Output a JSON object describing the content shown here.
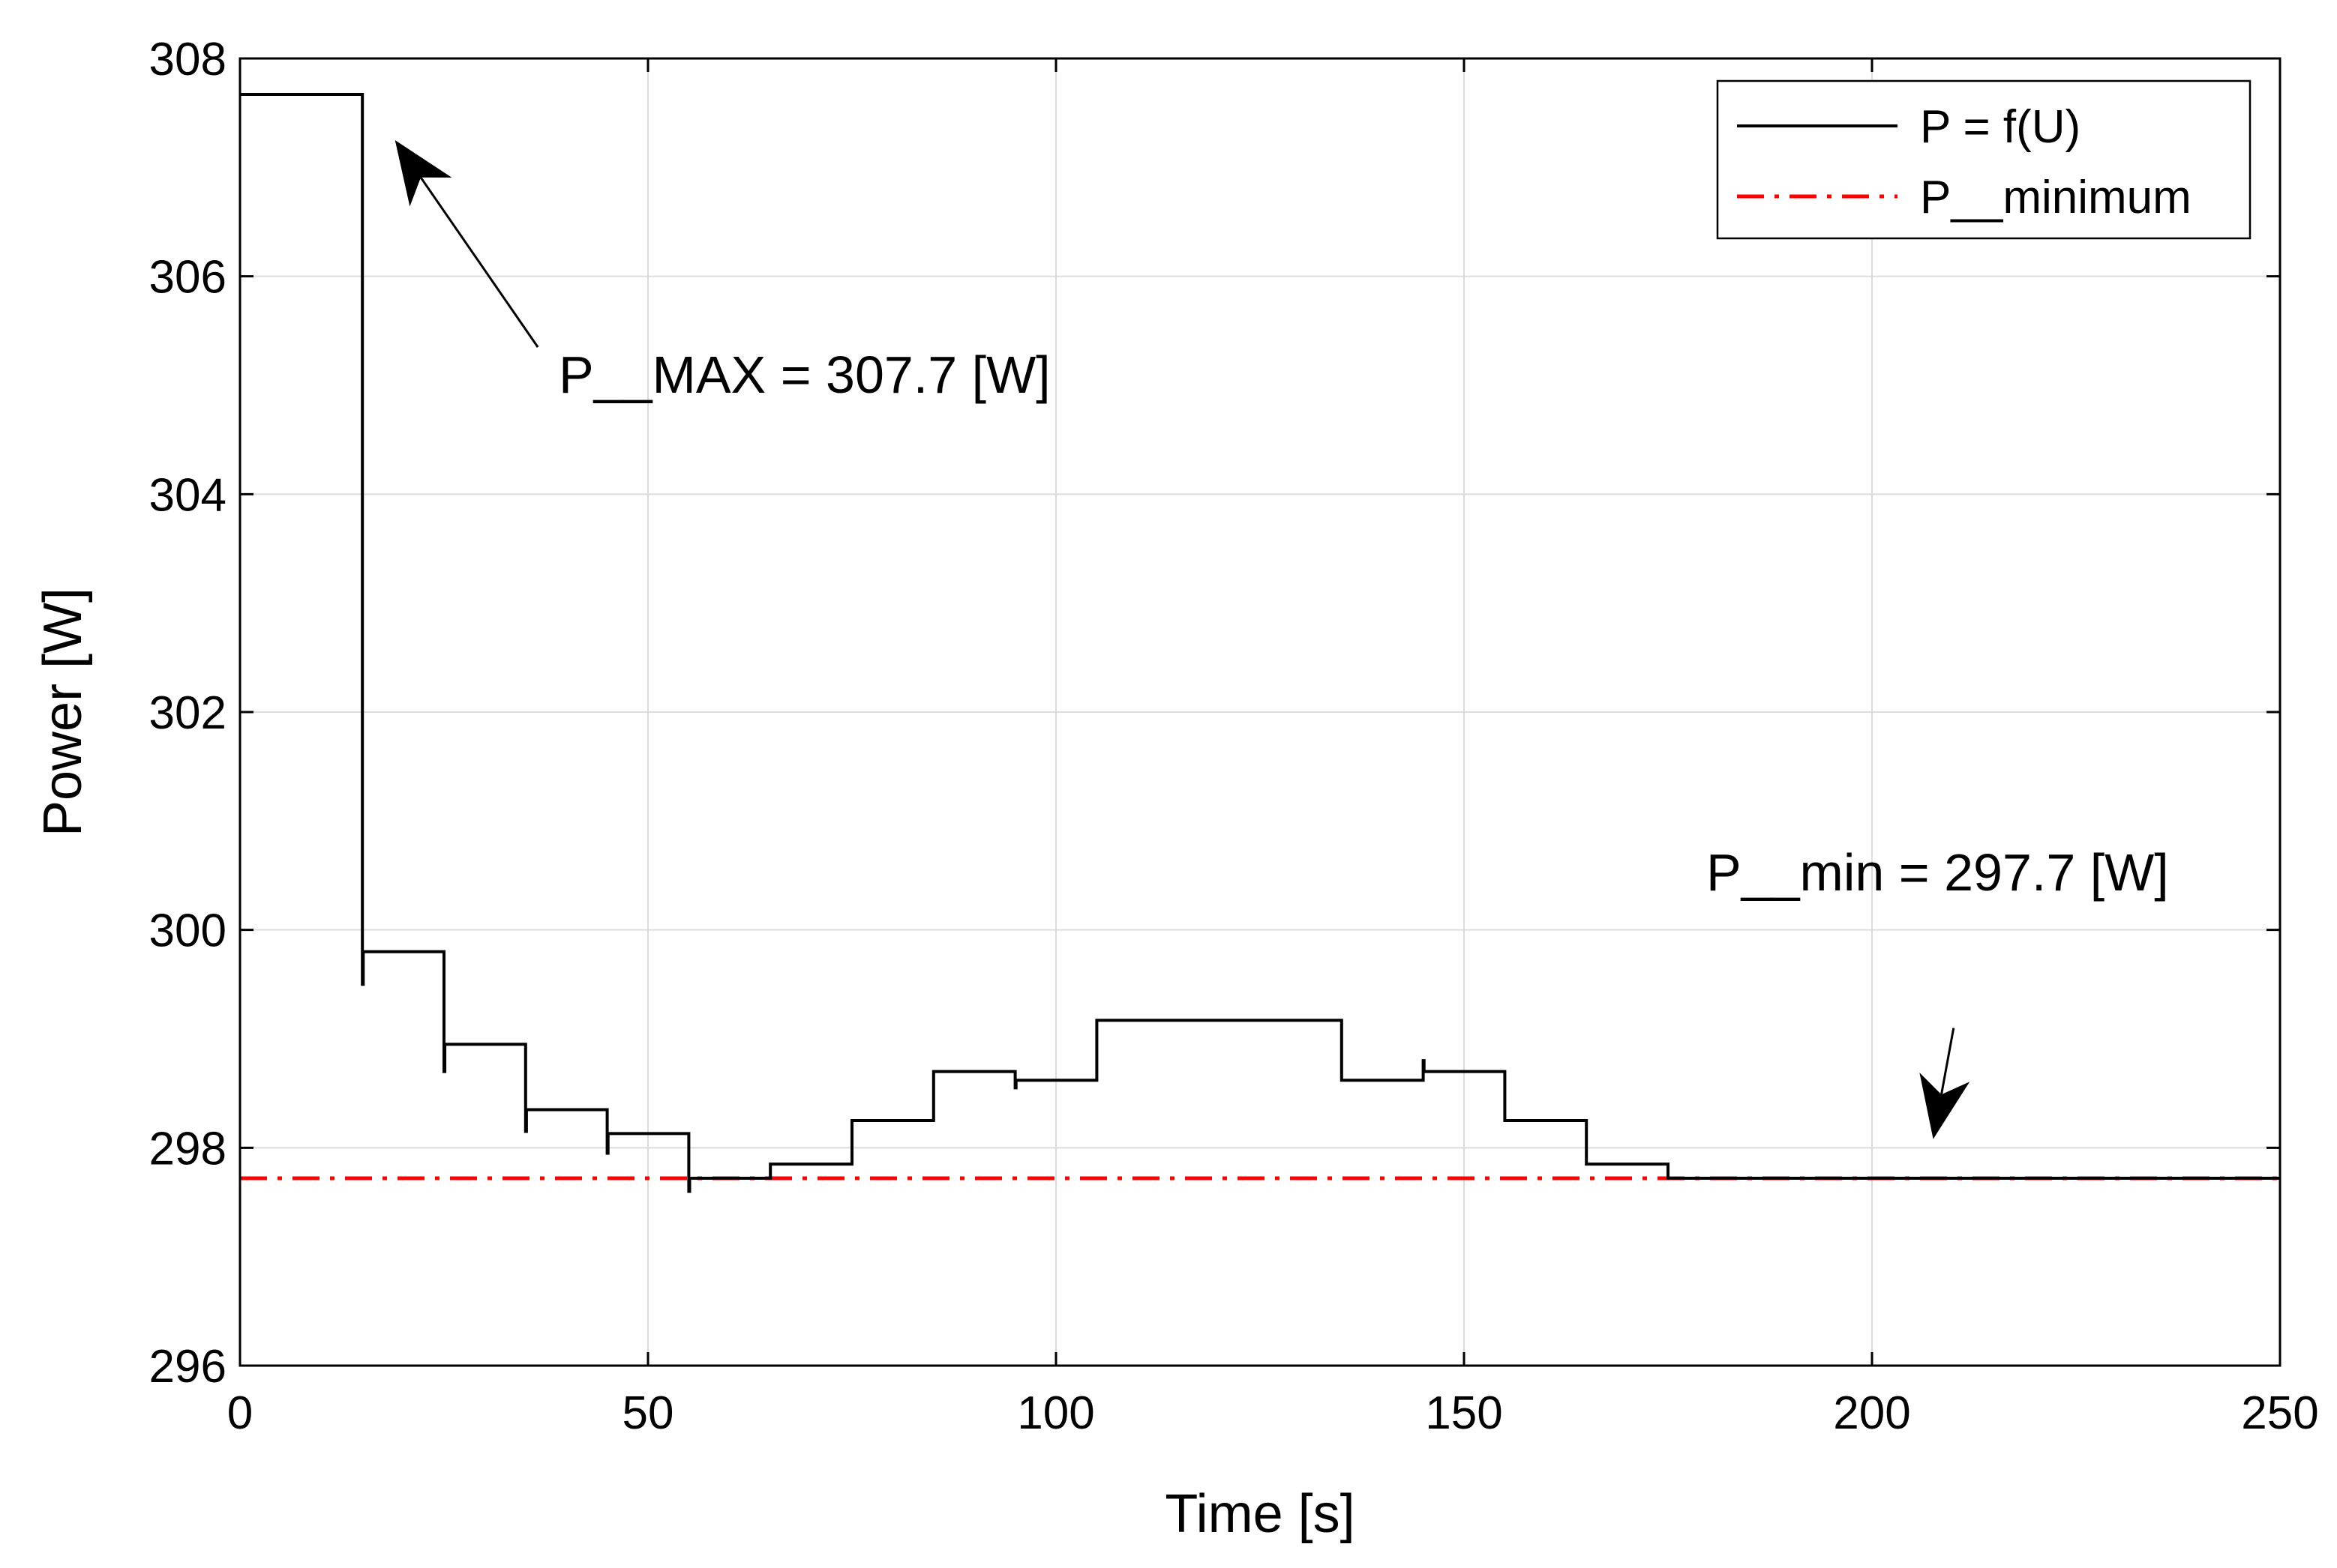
{
  "chart_data": {
    "type": "line",
    "title": "",
    "xlabel": "Time [s]",
    "ylabel": "Power [W]",
    "xlim": [
      0,
      250
    ],
    "ylim": [
      296,
      308
    ],
    "xticks": [
      0,
      50,
      100,
      150,
      200,
      250
    ],
    "yticks": [
      296,
      298,
      300,
      302,
      304,
      306,
      308
    ],
    "grid": true,
    "legend_position": "top-right",
    "series": [
      {
        "name": "P = f(U)",
        "style": "solid",
        "color": "#000000",
        "x": [
          0,
          15,
          15,
          15.1,
          15.1,
          25,
          25,
          25.1,
          25.1,
          35,
          35,
          35.1,
          35.1,
          45,
          45,
          45.1,
          45.1,
          55,
          55,
          55.1,
          55.1,
          65,
          65,
          75,
          75,
          85,
          85,
          95,
          95,
          95.1,
          95.1,
          105,
          105,
          135,
          135,
          135.1,
          135.1,
          145,
          145,
          145.1,
          145.1,
          155,
          155,
          165,
          165,
          175,
          175,
          250
        ],
        "y": [
          307.67,
          307.67,
          299.5,
          299.5,
          299.8,
          299.8,
          298.7,
          298.7,
          298.95,
          298.95,
          298.15,
          298.15,
          298.35,
          298.35,
          297.95,
          297.95,
          298.13,
          298.13,
          297.6,
          297.6,
          297.72,
          297.72,
          297.85,
          297.85,
          298.25,
          298.25,
          298.7,
          298.7,
          298.55,
          298.55,
          298.62,
          298.62,
          299.17,
          299.17,
          298.62,
          298.62,
          298.62,
          298.62,
          298.8,
          298.8,
          298.7,
          298.7,
          298.25,
          298.25,
          297.85,
          297.85,
          297.72,
          297.72
        ]
      },
      {
        "name": "P__minimum",
        "style": "dash-dot",
        "color": "#ff0000",
        "x": [
          0,
          250
        ],
        "y": [
          297.72,
          297.72
        ]
      }
    ],
    "annotations": [
      {
        "text": "P__MAX = 307.7 [W]",
        "arrow_from": [
          36.5,
          305.35
        ],
        "arrow_to": [
          19,
          307.25
        ]
      },
      {
        "text": "P__min = 297.7 [W]",
        "arrow_from": [
          210,
          299.1
        ],
        "arrow_to": [
          207.5,
          298.08
        ]
      }
    ]
  }
}
